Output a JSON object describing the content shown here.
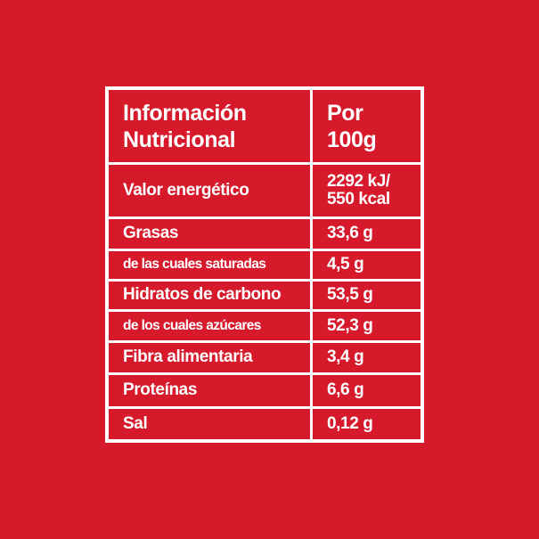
{
  "table": {
    "header": [
      [
        "Información",
        "Nutricional"
      ],
      [
        "Por",
        "100g"
      ]
    ],
    "rows": [
      [
        [
          "Valor energético"
        ],
        [
          "2292 kJ/",
          "550 kcal"
        ]
      ],
      [
        [
          "Grasas"
        ],
        [
          "33,6 g"
        ]
      ],
      [
        [
          "de las cuales saturadas"
        ],
        [
          "4,5 g"
        ]
      ],
      [
        [
          "Hidratos de carbono"
        ],
        [
          "53,5 g"
        ]
      ],
      [
        [
          "de los cuales azúcares"
        ],
        [
          "52,3 g"
        ]
      ],
      [
        [
          "Fibra alimentaria"
        ],
        [
          "3,4 g"
        ]
      ],
      [
        [
          "Proteínas"
        ],
        [
          "6,6 g"
        ]
      ],
      [
        [
          "Sal"
        ],
        [
          "0,12 g"
        ]
      ]
    ]
  }
}
